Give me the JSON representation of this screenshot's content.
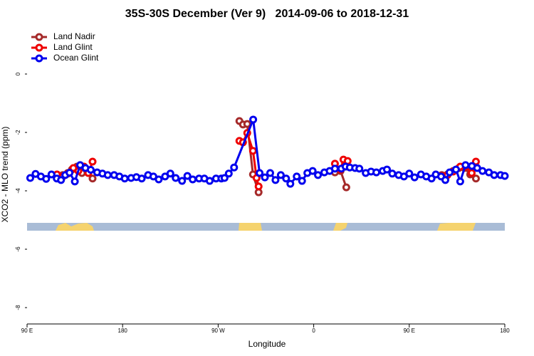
{
  "chart_data": {
    "type": "line",
    "title": "35S-30S December (Ver 9)   2014-09-06 to 2018-12-31",
    "xlabel": "Longitude",
    "ylabel": "XCO2 - MLO trend (ppm)",
    "xlim": [
      90,
      540
    ],
    "xticks": [
      {
        "value": 90,
        "label": "90 E"
      },
      180,
      {
        "value": 270,
        "label": "90 W"
      },
      {
        "value": 360,
        "label": "0"
      },
      {
        "value": 450,
        "label": "90 E"
      },
      {
        "value": 540,
        "label": "180"
      }
    ],
    "ylim": [
      -8.56,
      1.56
    ],
    "yticks": [
      0,
      -2,
      -4,
      -6,
      -8
    ],
    "legend": "top-left",
    "series": [
      {
        "name": "Land Nadir",
        "color": "#a52a2a",
        "x": [
          123.6,
          128.3,
          132.3,
          137,
          141.7,
          147,
          151.7,
          null,
          290,
          293.4,
          297.4,
          302.8,
          308.1,
          null,
          380,
          385.3,
          390.7,
          null,
          480.6,
          486,
          491.3,
          496.7,
          502,
          507.4,
          512.8
        ],
        "values": [
          -3.46,
          -3.39,
          -3.27,
          -3.17,
          -3.39,
          -3.37,
          -3.58,
          null,
          -1.61,
          -1.73,
          -1.71,
          -3.44,
          -4.05,
          null,
          -3.37,
          -3.32,
          -3.88,
          null,
          -3.46,
          -3.44,
          -3.32,
          -3.22,
          -3.22,
          -3.44,
          -3.58
        ]
      },
      {
        "name": "Land Glint",
        "color": "#ee0000",
        "x": [
          118.2,
          123.6,
          128.3,
          133.6,
          138.3,
          143.7,
          147.7,
          151.7,
          null,
          290,
          293.4,
          297.4,
          302.8,
          306.2,
          308.1,
          null,
          380,
          385.3,
          388,
          392,
          null,
          480.6,
          486,
          491.3,
          498,
          503.4,
          508.8,
          512.8
        ],
        "values": [
          -3.44,
          -3.51,
          -3.41,
          -3.22,
          -3.32,
          -3.17,
          -3.39,
          -3.0,
          null,
          -2.29,
          -2.34,
          -2.02,
          -2.63,
          -3.56,
          -3.85,
          null,
          -3.07,
          -3.27,
          -2.93,
          -2.98,
          null,
          -3.49,
          -3.46,
          -3.34,
          -3.17,
          -3.17,
          -3.39,
          -3.0
        ]
      },
      {
        "name": "Ocean Glint",
        "color": "#0000ee",
        "x": [
          93,
          98,
          103,
          108,
          113,
          118,
          122,
          126,
          130,
          135,
          140,
          145,
          150,
          156,
          161,
          166,
          172,
          177,
          182,
          188,
          193,
          198,
          204,
          209,
          214,
          220,
          225,
          230,
          236,
          241,
          246,
          252,
          257,
          262,
          268,
          273,
          276,
          280,
          285,
          303,
          309,
          314,
          319,
          324,
          329,
          334,
          338,
          344,
          349,
          354,
          359,
          364,
          370,
          375,
          380,
          386,
          390,
          394,
          399,
          403,
          409,
          414,
          419,
          425,
          429,
          434,
          440,
          445,
          450,
          455,
          461,
          466,
          471,
          475,
          480,
          484,
          488,
          494,
          498,
          503,
          509,
          514,
          519,
          525,
          530,
          536,
          540
        ],
        "values": [
          -3.56,
          -3.42,
          -3.51,
          -3.59,
          -3.44,
          -3.58,
          -3.63,
          -3.46,
          -3.38,
          -3.68,
          -3.12,
          -3.22,
          -3.28,
          -3.37,
          -3.41,
          -3.46,
          -3.46,
          -3.51,
          -3.58,
          -3.56,
          -3.53,
          -3.58,
          -3.46,
          -3.51,
          -3.61,
          -3.51,
          -3.41,
          -3.56,
          -3.66,
          -3.49,
          -3.61,
          -3.58,
          -3.58,
          -3.66,
          -3.58,
          -3.58,
          -3.56,
          -3.41,
          -3.2,
          -1.56,
          -3.39,
          -3.54,
          -3.39,
          -3.63,
          -3.46,
          -3.58,
          -3.76,
          -3.51,
          -3.66,
          -3.39,
          -3.32,
          -3.46,
          -3.37,
          -3.32,
          -3.24,
          -3.24,
          -3.17,
          -3.2,
          -3.22,
          -3.24,
          -3.39,
          -3.34,
          -3.37,
          -3.32,
          -3.27,
          -3.41,
          -3.46,
          -3.51,
          -3.41,
          -3.54,
          -3.44,
          -3.51,
          -3.58,
          -3.44,
          -3.51,
          -3.63,
          -3.37,
          -3.27,
          -3.68,
          -3.12,
          -3.15,
          -3.22,
          -3.32,
          -3.37,
          -3.46,
          -3.46,
          -3.49
        ]
      }
    ]
  }
}
